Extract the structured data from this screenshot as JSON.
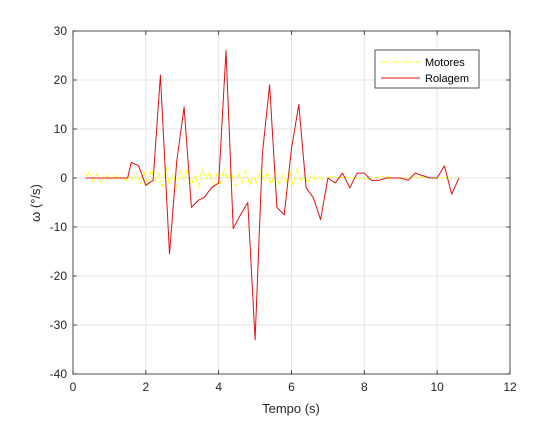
{
  "chart_data": {
    "type": "line",
    "xlabel": "Tempo (s)",
    "ylabel": "ω (°/s)",
    "xlim": [
      0,
      12
    ],
    "ylim": [
      -40,
      30
    ],
    "xticks": [
      "0",
      "2",
      "4",
      "6",
      "8",
      "10",
      "12"
    ],
    "yticks": [
      "-40",
      "-30",
      "-20",
      "-10",
      "0",
      "10",
      "20",
      "30"
    ],
    "grid": true,
    "legend_placement": "top-right",
    "series": [
      {
        "name": "Motores",
        "color": "#ffff00",
        "style": "dash-dot",
        "x": [
          0.35,
          0.45,
          0.55,
          0.65,
          0.75,
          0.85,
          0.95,
          1.05,
          1.15,
          1.25,
          1.35,
          1.45,
          1.55,
          1.65,
          1.75,
          1.85,
          1.95,
          2.05,
          2.15,
          2.25,
          2.35,
          2.45,
          2.55,
          2.65,
          2.75,
          2.85,
          2.95,
          3.05,
          3.15,
          3.25,
          3.35,
          3.45,
          3.55,
          3.65,
          3.75,
          3.85,
          3.95,
          4.05,
          4.15,
          4.25,
          4.35,
          4.45,
          4.55,
          4.65,
          4.75,
          4.85,
          4.95,
          5.05,
          5.15,
          5.25,
          5.35,
          5.45,
          5.55,
          5.65,
          5.75,
          5.85,
          5.95,
          6.05,
          6.15,
          6.25,
          6.35,
          6.45,
          6.55,
          6.65,
          6.75,
          6.85,
          6.95,
          7.5,
          8.0,
          8.5,
          9.0,
          9.5,
          10.0,
          10.5
        ],
        "values": [
          0.3,
          1.2,
          -0.8,
          0.9,
          -1.0,
          0.6,
          0.2,
          -0.4,
          0.5,
          -0.2,
          0.3,
          -0.5,
          0.4,
          -0.2,
          0.8,
          -1.2,
          1.5,
          -1.6,
          2.0,
          -0.8,
          1.2,
          -1.8,
          2.3,
          -1.4,
          0.9,
          -2.0,
          1.6,
          -0.5,
          1.8,
          -1.5,
          0.7,
          -1.9,
          2.1,
          -0.4,
          1.4,
          -1.8,
          0.9,
          -1.2,
          1.9,
          -0.6,
          1.3,
          -2.1,
          0.8,
          -1.0,
          1.7,
          -1.6,
          0.5,
          -1.1,
          1.5,
          -0.7,
          1.2,
          -1.5,
          1.8,
          -1.3,
          0.6,
          -0.9,
          1.4,
          -1.7,
          2.0,
          -0.5,
          0.9,
          -1.2,
          1.0,
          -0.3,
          0.5,
          -0.4,
          0.2,
          0.1,
          -0.2,
          0.3,
          -0.1,
          0.2,
          0.0,
          0.1
        ]
      },
      {
        "name": "Rolagem",
        "color": "#dd1111",
        "style": "solid",
        "x": [
          0.35,
          1.5,
          1.6,
          1.8,
          2.0,
          2.2,
          2.4,
          2.65,
          2.85,
          3.05,
          3.25,
          3.45,
          3.6,
          3.8,
          4.0,
          4.2,
          4.4,
          4.6,
          4.8,
          5.0,
          5.2,
          5.4,
          5.6,
          5.8,
          6.0,
          6.2,
          6.4,
          6.6,
          6.8,
          7.0,
          7.2,
          7.4,
          7.6,
          7.8,
          8.0,
          8.2,
          8.4,
          8.6,
          8.8,
          9.0,
          9.2,
          9.4,
          9.6,
          9.8,
          10.0,
          10.2,
          10.4,
          10.6
        ],
        "values": [
          0,
          0,
          3.2,
          2.5,
          -1.5,
          -0.5,
          21,
          -15.5,
          3.5,
          14.5,
          -6,
          -4.5,
          -4,
          -2,
          -1,
          26,
          -10.3,
          -7.5,
          -5,
          -33,
          5,
          19,
          -6,
          -7.5,
          6,
          15,
          -2,
          -4,
          -8.5,
          0,
          -1,
          1,
          -2,
          1,
          1,
          -0.5,
          -0.5,
          0,
          0,
          0,
          -0.5,
          1,
          0.5,
          0,
          0,
          2.5,
          -3.3,
          0
        ]
      }
    ]
  }
}
